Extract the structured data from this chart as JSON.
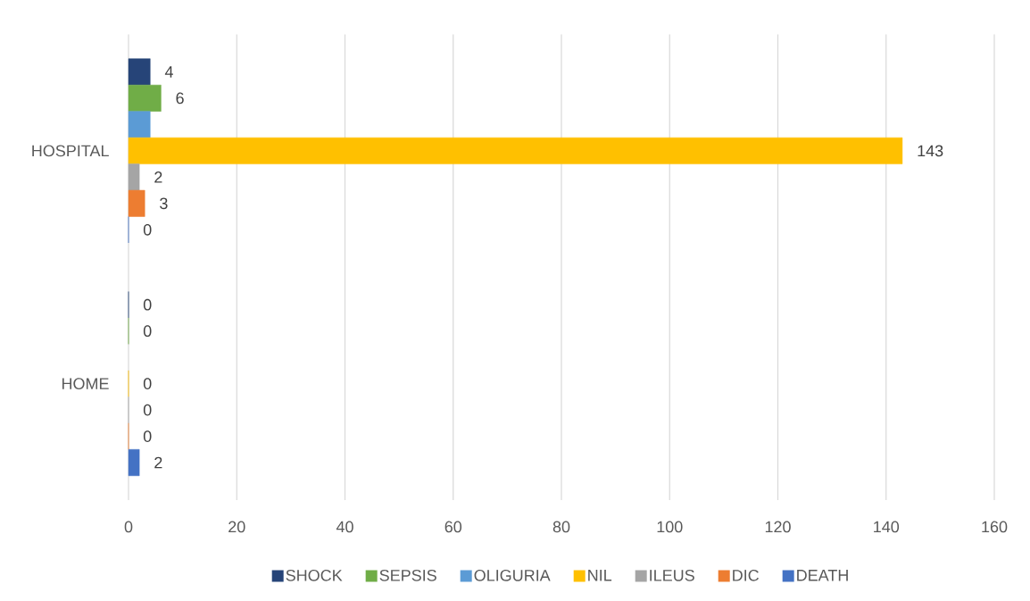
{
  "chart_data": {
    "type": "bar",
    "orientation": "horizontal",
    "categories": [
      "HOSPITAL",
      "HOME"
    ],
    "series": [
      {
        "name": "SHOCK",
        "color": "#264478",
        "values": [
          4,
          0
        ],
        "value_labels": [
          "4",
          "0"
        ]
      },
      {
        "name": "SEPSIS",
        "color": "#70ad47",
        "values": [
          6,
          0
        ],
        "value_labels": [
          "6",
          "0"
        ]
      },
      {
        "name": "OLIGURIA",
        "color": "#5b9bd5",
        "values": [
          4,
          null
        ],
        "value_labels": [
          null,
          null
        ]
      },
      {
        "name": "NIL",
        "color": "#ffc000",
        "values": [
          143,
          0
        ],
        "value_labels": [
          "143",
          "0"
        ]
      },
      {
        "name": "ILEUS",
        "color": "#a5a5a5",
        "values": [
          2,
          0
        ],
        "value_labels": [
          "2",
          "0"
        ]
      },
      {
        "name": "DIC",
        "color": "#ed7d31",
        "values": [
          3,
          0
        ],
        "value_labels": [
          "3",
          "0"
        ]
      },
      {
        "name": "DEATH",
        "color": "#4472c4",
        "values": [
          0,
          2
        ],
        "value_labels": [
          "0",
          "2"
        ]
      }
    ],
    "xlim": [
      0,
      160
    ],
    "xticks": [
      0,
      20,
      40,
      60,
      80,
      100,
      120,
      140,
      160
    ],
    "grid": "x",
    "legend": "bottom"
  }
}
